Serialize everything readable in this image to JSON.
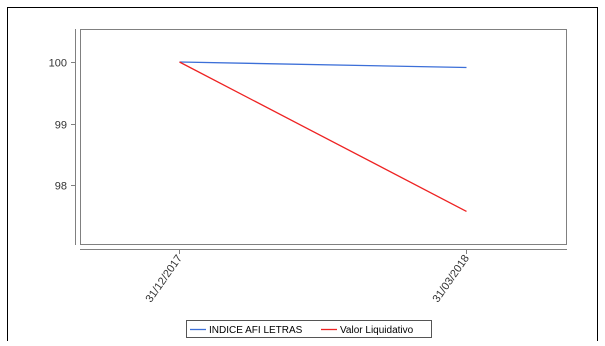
{
  "chart_data": {
    "type": "line",
    "title": "",
    "xlabel": "",
    "ylabel": "",
    "categories": [
      "31/12/2017",
      "31/03/2018"
    ],
    "ylim": [
      97.0,
      100.5
    ],
    "yticks": [
      {
        "value": 100,
        "label": "100"
      },
      {
        "value": 99,
        "label": "99"
      },
      {
        "value": 98,
        "label": "98"
      }
    ],
    "grid": false,
    "legend_position": "bottom",
    "series": [
      {
        "name": "INDICE AFI LETRAS",
        "color": "#3c6fd8",
        "values": [
          100.0,
          99.91
        ]
      },
      {
        "name": "Valor Liquidativo",
        "color": "#ee2222",
        "values": [
          100.0,
          97.57
        ]
      }
    ]
  }
}
